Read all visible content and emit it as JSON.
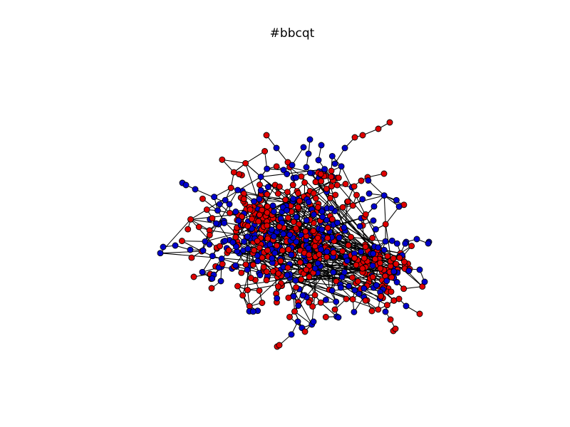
{
  "figure": {
    "title": "#bbcqt",
    "colors": {
      "group_red": "#e00000",
      "group_blue": "#0000cc",
      "edge": "#000000",
      "node_outline": "#000000",
      "background": "#ffffff"
    },
    "axes_visible": false
  }
}
